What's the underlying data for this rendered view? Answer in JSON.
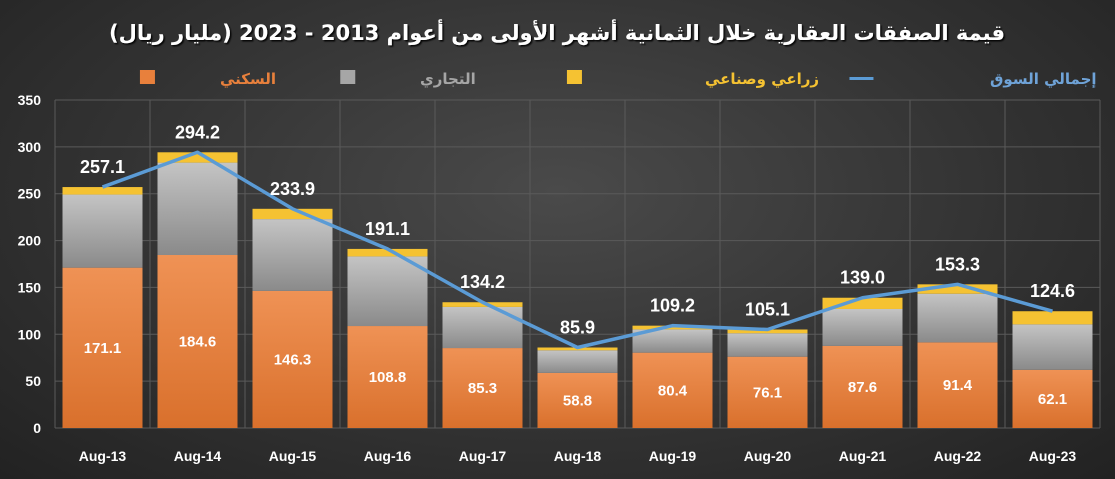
{
  "chart_data": {
    "type": "bar",
    "stacked": true,
    "title": "قيمة الصفقات العقارية خلال الثمانية أشهر الأولى من أعوام 2013 - 2023 (مليار ريال)",
    "categories": [
      "Aug-13",
      "Aug-14",
      "Aug-15",
      "Aug-16",
      "Aug-17",
      "Aug-18",
      "Aug-19",
      "Aug-20",
      "Aug-21",
      "Aug-22",
      "Aug-23"
    ],
    "series": [
      {
        "name": "السكني",
        "kind": "bar",
        "color": "#e8803c",
        "values": [
          171.1,
          184.6,
          146.3,
          108.8,
          85.3,
          58.8,
          80.4,
          76.1,
          87.6,
          91.4,
          62.1
        ]
      },
      {
        "name": "التجاري",
        "kind": "bar",
        "color": "#a6a6a6",
        "values": [
          78.0,
          98.6,
          76.6,
          74.3,
          43.9,
          24.1,
          24.8,
          25.0,
          39.4,
          51.9,
          48.5
        ]
      },
      {
        "name": "زراعي وصناعي",
        "kind": "bar",
        "color": "#f5c232",
        "values": [
          8,
          11,
          11,
          8,
          5,
          3,
          4,
          4,
          12,
          10,
          14
        ]
      },
      {
        "name": "إجمالي السوق",
        "kind": "line",
        "color": "#5b9bd5",
        "values": [
          257.1,
          294.2,
          233.9,
          191.1,
          134.2,
          85.9,
          109.2,
          105.1,
          139.0,
          153.3,
          124.6
        ]
      }
    ],
    "total_labels": [
      "257.1",
      "294.2",
      "233.9",
      "191.1",
      "134.2",
      "85.9",
      "109.2",
      "105.1",
      "139.0",
      "153.3",
      "124.6"
    ],
    "residential_labels": [
      "171.1",
      "184.6",
      "146.3",
      "108.8",
      "85.3",
      "58.8",
      "80.4",
      "76.1",
      "87.6",
      "91.4",
      "62.1"
    ],
    "ylim": [
      0,
      350
    ],
    "yticks": [
      "0",
      "50",
      "100",
      "150",
      "200",
      "250",
      "300",
      "350"
    ],
    "grid": true,
    "legend_position": "top",
    "xlabel": "",
    "ylabel": ""
  }
}
